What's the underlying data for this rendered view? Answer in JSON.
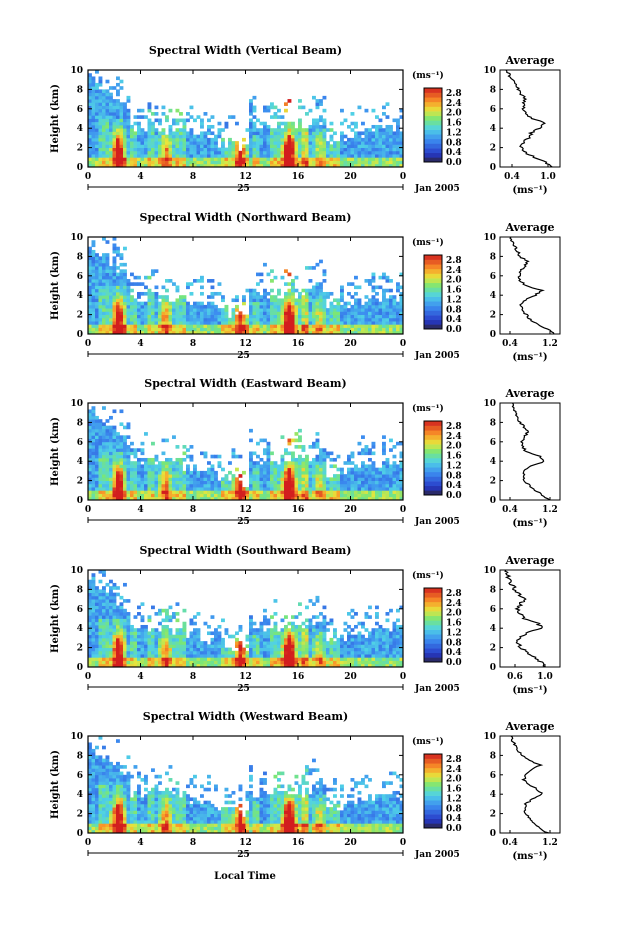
{
  "figure": {
    "x_axis_label": "Local Time",
    "date_label": "Jan 2005",
    "day_label": "25",
    "avg_title": "Average",
    "cb_unit": "(ms⁻¹)",
    "avg_xlabel": "(ms⁻¹)",
    "height_label": "Height (km)"
  },
  "chart_data": [
    {
      "type": "heatmap",
      "title": "Spectral Width (Vertical Beam)",
      "ylabel": "Height (km)",
      "xlabel": "Local Time",
      "x_ticks": [
        "0",
        "4",
        "8",
        "12",
        "16",
        "20",
        "0"
      ],
      "x_range": [
        0,
        24
      ],
      "y_ticks": [
        "0",
        "2",
        "4",
        "6",
        "8",
        "10"
      ],
      "y_range": [
        0,
        10
      ],
      "colorbar": {
        "unit": "(ms⁻¹)",
        "ticks": [
          "0.0",
          "0.4",
          "0.8",
          "1.2",
          "1.6",
          "2.0",
          "2.4",
          "2.8"
        ],
        "range": [
          0,
          3.0
        ]
      },
      "average_profile": {
        "title": "Average",
        "xlabel": "(ms⁻¹)",
        "x_ticks": [
          "0.4",
          "1.0"
        ],
        "x_range": [
          0.2,
          1.2
        ],
        "heights": [
          0,
          0.5,
          1,
          1.5,
          2,
          2.5,
          3,
          3.5,
          4,
          4.5,
          5,
          5.5,
          6,
          6.5,
          7,
          7.5,
          8,
          8.5,
          9,
          9.5,
          10
        ],
        "values": [
          1.05,
          0.95,
          0.78,
          0.62,
          0.55,
          0.58,
          0.68,
          0.72,
          0.85,
          0.95,
          0.75,
          0.62,
          0.58,
          0.6,
          0.62,
          0.55,
          0.5,
          0.45,
          0.4,
          0.35,
          0.3
        ]
      }
    },
    {
      "type": "heatmap",
      "title": "Spectral Width (Northward Beam)",
      "ylabel": "Height (km)",
      "xlabel": "Local Time",
      "x_ticks": [
        "0",
        "4",
        "8",
        "12",
        "16",
        "20",
        "0"
      ],
      "x_range": [
        0,
        24
      ],
      "y_ticks": [
        "0",
        "2",
        "4",
        "6",
        "8",
        "10"
      ],
      "y_range": [
        0,
        10
      ],
      "colorbar": {
        "unit": "(ms⁻¹)",
        "ticks": [
          "0.0",
          "0.4",
          "0.8",
          "1.2",
          "1.6",
          "2.0",
          "2.4",
          "2.8"
        ],
        "range": [
          0,
          3.0
        ]
      },
      "average_profile": {
        "title": "Average",
        "xlabel": "(ms⁻¹)",
        "x_ticks": [
          "0.4",
          "1.2"
        ],
        "x_range": [
          0.2,
          1.4
        ],
        "heights": [
          0,
          0.5,
          1,
          1.5,
          2,
          2.5,
          3,
          3.5,
          4,
          4.5,
          5,
          5.5,
          6,
          6.5,
          7,
          7.5,
          8,
          8.5,
          9,
          9.5,
          10
        ],
        "values": [
          1.3,
          1.15,
          0.95,
          0.8,
          0.72,
          0.65,
          0.62,
          0.7,
          0.9,
          1.05,
          0.7,
          0.6,
          0.58,
          0.62,
          0.7,
          0.75,
          0.6,
          0.55,
          0.5,
          0.45,
          0.42
        ]
      }
    },
    {
      "type": "heatmap",
      "title": "Spectral Width (Eastward Beam)",
      "ylabel": "Height (km)",
      "xlabel": "Local Time",
      "x_ticks": [
        "0",
        "4",
        "8",
        "12",
        "16",
        "20",
        "0"
      ],
      "x_range": [
        0,
        24
      ],
      "y_ticks": [
        "0",
        "2",
        "4",
        "6",
        "8",
        "10"
      ],
      "y_range": [
        0,
        10
      ],
      "colorbar": {
        "unit": "(ms⁻¹)",
        "ticks": [
          "0.0",
          "0.4",
          "0.8",
          "1.2",
          "1.6",
          "2.0",
          "2.4",
          "2.8"
        ],
        "range": [
          0,
          3.0
        ]
      },
      "average_profile": {
        "title": "Average",
        "xlabel": "(ms⁻¹)",
        "x_ticks": [
          "0.4",
          "1.2"
        ],
        "x_range": [
          0.2,
          1.4
        ],
        "heights": [
          0,
          0.5,
          1,
          1.5,
          2,
          2.5,
          3,
          3.5,
          4,
          4.5,
          5,
          5.5,
          6,
          6.5,
          7,
          7.5,
          8,
          8.5,
          9,
          9.5,
          10
        ],
        "values": [
          1.2,
          1.05,
          0.9,
          0.78,
          0.7,
          0.66,
          0.68,
          0.8,
          1.1,
          1.0,
          0.72,
          0.65,
          0.62,
          0.7,
          0.75,
          0.68,
          0.6,
          0.55,
          0.5,
          0.48,
          0.45
        ]
      }
    },
    {
      "type": "heatmap",
      "title": "Spectral Width (Southward Beam)",
      "ylabel": "Height (km)",
      "xlabel": "Local Time",
      "x_ticks": [
        "0",
        "4",
        "8",
        "12",
        "16",
        "20",
        "0"
      ],
      "x_range": [
        0,
        24
      ],
      "y_ticks": [
        "0",
        "2",
        "4",
        "6",
        "8",
        "10"
      ],
      "y_range": [
        0,
        10
      ],
      "colorbar": {
        "unit": "(ms⁻¹)",
        "ticks": [
          "0.0",
          "0.4",
          "0.8",
          "1.2",
          "1.6",
          "2.0",
          "2.4",
          "2.8"
        ],
        "range": [
          0,
          3.0
        ]
      },
      "average_profile": {
        "title": "Average",
        "xlabel": "(ms⁻¹)",
        "x_ticks": [
          "0.6",
          "1.0"
        ],
        "x_range": [
          0.4,
          1.2
        ],
        "heights": [
          0,
          0.5,
          1,
          1.5,
          2,
          2.5,
          3,
          3.5,
          4,
          4.5,
          5,
          5.5,
          6,
          6.5,
          7,
          7.5,
          8,
          8.5,
          9,
          9.5,
          10
        ],
        "values": [
          1.0,
          0.95,
          0.85,
          0.75,
          0.68,
          0.64,
          0.66,
          0.75,
          0.98,
          0.9,
          0.72,
          0.66,
          0.64,
          0.68,
          0.72,
          0.66,
          0.6,
          0.56,
          0.52,
          0.5,
          0.48
        ]
      }
    },
    {
      "type": "heatmap",
      "title": "Spectral Width (Westward Beam)",
      "ylabel": "Height (km)",
      "xlabel": "Local Time",
      "x_ticks": [
        "0",
        "4",
        "8",
        "12",
        "16",
        "20",
        "0"
      ],
      "x_range": [
        0,
        24
      ],
      "y_ticks": [
        "0",
        "2",
        "4",
        "6",
        "8",
        "10"
      ],
      "y_range": [
        0,
        10
      ],
      "colorbar": {
        "unit": "(ms⁻¹)",
        "ticks": [
          "0.0",
          "0.4",
          "0.8",
          "1.2",
          "1.6",
          "2.0",
          "2.4",
          "2.8"
        ],
        "range": [
          0,
          3.0
        ]
      },
      "average_profile": {
        "title": "Average",
        "xlabel": "(ms⁻¹)",
        "x_ticks": [
          "0.4",
          "1.2"
        ],
        "x_range": [
          0.2,
          1.4
        ],
        "heights": [
          0,
          0.5,
          1,
          1.5,
          2,
          2.5,
          3,
          3.5,
          4,
          4.5,
          5,
          5.5,
          6,
          6.5,
          7,
          7.5,
          8,
          8.5,
          9,
          9.5,
          10
        ],
        "values": [
          1.15,
          1.0,
          0.88,
          0.78,
          0.72,
          0.7,
          0.72,
          0.85,
          1.05,
          0.95,
          0.75,
          0.68,
          0.7,
          0.85,
          1.0,
          0.8,
          0.65,
          0.55,
          0.5,
          0.45,
          0.42
        ]
      }
    }
  ]
}
